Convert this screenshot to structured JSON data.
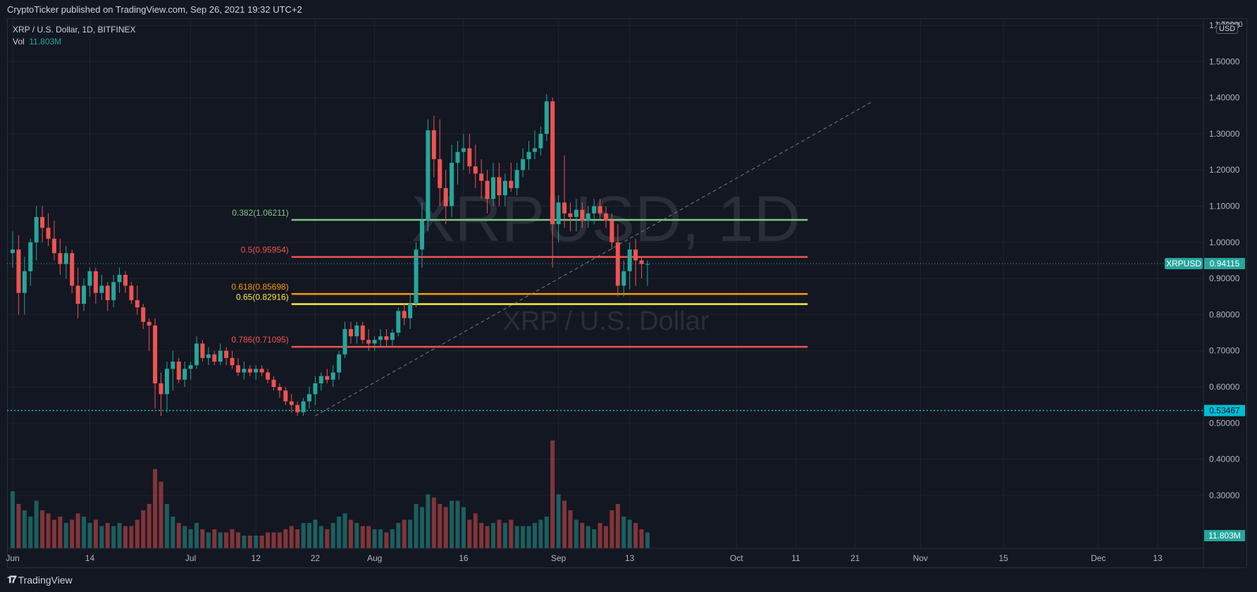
{
  "header": {
    "publish_line": "CryptoTicker published on TradingView.com, Sep 26, 2021 19:32 UTC+2"
  },
  "symbol": {
    "title": "XRP / U.S. Dollar, 1D, BITFINEX",
    "vol_label": "Vol",
    "vol_value": "11.803M",
    "watermark_big": "XRPUSD, 1D",
    "watermark_small": "XRP / U.S. Dollar",
    "currency": "USD"
  },
  "footer": {
    "logo_text": "TradingView"
  },
  "colors": {
    "background": "#131722",
    "grid": "#1f2330",
    "up": "#26a69a",
    "down": "#ef5350",
    "fib_0382": "#81c784",
    "fib_05": "#ef5350",
    "fib_0618": "#ff9800",
    "fib_065": "#ffeb3b",
    "fib_0786": "#ef5350",
    "last_price_badge": "#26a69a",
    "support_line": "#00bcd4"
  },
  "chart_data": {
    "type": "candlestick",
    "title": "XRP / U.S. Dollar, 1D, BITFINEX",
    "y_axis": {
      "ticks": [
        "0.30000",
        "0.40000",
        "0.50000",
        "0.60000",
        "0.70000",
        "0.80000",
        "0.90000",
        "1.00000",
        "1.10000",
        "1.20000",
        "1.30000",
        "1.40000",
        "1.50000",
        "1.60000"
      ],
      "top_partial_label": "1.70000",
      "range": [
        0.27,
        1.74
      ]
    },
    "x_axis": {
      "labels": [
        "Jun",
        "14",
        "Jul",
        "12",
        "22",
        "Aug",
        "16",
        "Sep",
        "13",
        "Oct",
        "11",
        "21",
        "Nov",
        "15",
        "Dec",
        "13"
      ],
      "label_days": [
        0,
        13,
        30,
        41,
        51,
        61,
        76,
        92,
        104,
        122,
        132,
        142,
        153,
        167,
        183,
        193
      ]
    },
    "last_price": {
      "symbol": "XRPUSD",
      "value": "0.94115"
    },
    "support_level": {
      "value": 0.53467,
      "label": "0.53467"
    },
    "volume_badge": "11.803M",
    "fib_levels": [
      {
        "label": "0.382(1.06211)",
        "value": 1.06211,
        "color": "#81c784"
      },
      {
        "label": "0.5(0.95954)",
        "value": 0.95954,
        "color": "#ef5350"
      },
      {
        "label": "0.618(0.85698)",
        "value": 0.85698,
        "color": "#ff9800"
      },
      {
        "label": "0.65(0.82916)",
        "value": 0.82916,
        "color": "#ffeb3b"
      },
      {
        "label": "0.786(0.71095)",
        "value": 0.71095,
        "color": "#ef5350"
      }
    ],
    "trend_line": {
      "from": {
        "day": 51,
        "price": 0.52
      },
      "to": {
        "day": 145,
        "price": 1.39
      }
    },
    "candles": [
      [
        0.97,
        1.03,
        0.93,
        0.98,
        18
      ],
      [
        0.98,
        1.02,
        0.8,
        0.86,
        14
      ],
      [
        0.86,
        0.96,
        0.8,
        0.92,
        12
      ],
      [
        0.92,
        1.01,
        0.88,
        1.0,
        10
      ],
      [
        1.0,
        1.1,
        0.95,
        1.07,
        15
      ],
      [
        1.07,
        1.1,
        1.0,
        1.04,
        12
      ],
      [
        1.04,
        1.08,
        0.99,
        1.01,
        11
      ],
      [
        1.01,
        1.06,
        0.95,
        0.97,
        9
      ],
      [
        0.97,
        1.01,
        0.91,
        0.94,
        10
      ],
      [
        0.94,
        0.99,
        0.9,
        0.97,
        8
      ],
      [
        0.97,
        0.98,
        0.86,
        0.88,
        9
      ],
      [
        0.88,
        0.93,
        0.79,
        0.83,
        11
      ],
      [
        0.83,
        0.9,
        0.81,
        0.88,
        10
      ],
      [
        0.88,
        0.93,
        0.85,
        0.92,
        8
      ],
      [
        0.92,
        0.93,
        0.83,
        0.86,
        9
      ],
      [
        0.86,
        0.91,
        0.84,
        0.88,
        7
      ],
      [
        0.88,
        0.89,
        0.81,
        0.84,
        8
      ],
      [
        0.84,
        0.91,
        0.82,
        0.89,
        7
      ],
      [
        0.89,
        0.93,
        0.86,
        0.91,
        8
      ],
      [
        0.91,
        0.92,
        0.86,
        0.88,
        7
      ],
      [
        0.88,
        0.89,
        0.83,
        0.84,
        7
      ],
      [
        0.84,
        0.88,
        0.8,
        0.82,
        9
      ],
      [
        0.82,
        0.83,
        0.76,
        0.78,
        12
      ],
      [
        0.78,
        0.79,
        0.7,
        0.77,
        14
      ],
      [
        0.77,
        0.79,
        0.54,
        0.61,
        25
      ],
      [
        0.61,
        0.64,
        0.52,
        0.58,
        21
      ],
      [
        0.58,
        0.67,
        0.53,
        0.65,
        14
      ],
      [
        0.65,
        0.7,
        0.59,
        0.67,
        10
      ],
      [
        0.67,
        0.68,
        0.61,
        0.62,
        8
      ],
      [
        0.62,
        0.67,
        0.6,
        0.65,
        7
      ],
      [
        0.65,
        0.67,
        0.62,
        0.66,
        6
      ],
      [
        0.66,
        0.74,
        0.65,
        0.72,
        8
      ],
      [
        0.72,
        0.73,
        0.67,
        0.68,
        6
      ],
      [
        0.68,
        0.71,
        0.66,
        0.69,
        5
      ],
      [
        0.69,
        0.7,
        0.66,
        0.67,
        6
      ],
      [
        0.67,
        0.72,
        0.66,
        0.7,
        5
      ],
      [
        0.7,
        0.71,
        0.66,
        0.68,
        5
      ],
      [
        0.68,
        0.7,
        0.65,
        0.66,
        6
      ],
      [
        0.66,
        0.68,
        0.63,
        0.64,
        5
      ],
      [
        0.64,
        0.67,
        0.62,
        0.65,
        4
      ],
      [
        0.65,
        0.66,
        0.63,
        0.64,
        4
      ],
      [
        0.64,
        0.66,
        0.62,
        0.65,
        4
      ],
      [
        0.65,
        0.66,
        0.63,
        0.64,
        4
      ],
      [
        0.64,
        0.65,
        0.61,
        0.62,
        5
      ],
      [
        0.62,
        0.63,
        0.59,
        0.6,
        5
      ],
      [
        0.6,
        0.61,
        0.57,
        0.59,
        5
      ],
      [
        0.59,
        0.6,
        0.55,
        0.56,
        6
      ],
      [
        0.56,
        0.58,
        0.53,
        0.55,
        7
      ],
      [
        0.55,
        0.56,
        0.52,
        0.53,
        6
      ],
      [
        0.53,
        0.57,
        0.52,
        0.56,
        8
      ],
      [
        0.56,
        0.6,
        0.54,
        0.58,
        8
      ],
      [
        0.58,
        0.63,
        0.55,
        0.61,
        9
      ],
      [
        0.61,
        0.64,
        0.59,
        0.63,
        7
      ],
      [
        0.63,
        0.65,
        0.61,
        0.62,
        6
      ],
      [
        0.62,
        0.66,
        0.6,
        0.64,
        8
      ],
      [
        0.64,
        0.7,
        0.62,
        0.69,
        10
      ],
      [
        0.69,
        0.78,
        0.68,
        0.76,
        11
      ],
      [
        0.76,
        0.78,
        0.72,
        0.74,
        9
      ],
      [
        0.74,
        0.78,
        0.72,
        0.77,
        8
      ],
      [
        0.77,
        0.78,
        0.72,
        0.73,
        7
      ],
      [
        0.73,
        0.76,
        0.7,
        0.72,
        7
      ],
      [
        0.72,
        0.74,
        0.7,
        0.73,
        6
      ],
      [
        0.73,
        0.76,
        0.71,
        0.74,
        6
      ],
      [
        0.74,
        0.76,
        0.71,
        0.73,
        5
      ],
      [
        0.73,
        0.76,
        0.71,
        0.75,
        6
      ],
      [
        0.75,
        0.82,
        0.74,
        0.81,
        8
      ],
      [
        0.81,
        0.83,
        0.77,
        0.79,
        9
      ],
      [
        0.79,
        0.86,
        0.76,
        0.83,
        9
      ],
      [
        0.83,
        1.0,
        0.82,
        0.98,
        14
      ],
      [
        0.98,
        1.11,
        0.93,
        1.06,
        13
      ],
      [
        1.06,
        1.34,
        1.03,
        1.31,
        17
      ],
      [
        1.31,
        1.35,
        1.18,
        1.23,
        16
      ],
      [
        1.23,
        1.34,
        1.1,
        1.15,
        14
      ],
      [
        1.15,
        1.2,
        1.05,
        1.1,
        13
      ],
      [
        1.1,
        1.27,
        1.07,
        1.22,
        15
      ],
      [
        1.22,
        1.28,
        1.16,
        1.25,
        15
      ],
      [
        1.25,
        1.3,
        1.2,
        1.26,
        13
      ],
      [
        1.26,
        1.3,
        1.19,
        1.21,
        9
      ],
      [
        1.21,
        1.27,
        1.15,
        1.19,
        11
      ],
      [
        1.19,
        1.23,
        1.12,
        1.17,
        8
      ],
      [
        1.17,
        1.2,
        1.08,
        1.12,
        7
      ],
      [
        1.12,
        1.22,
        1.1,
        1.18,
        8
      ],
      [
        1.18,
        1.22,
        1.1,
        1.13,
        9
      ],
      [
        1.13,
        1.19,
        1.1,
        1.17,
        8
      ],
      [
        1.17,
        1.22,
        1.14,
        1.15,
        9
      ],
      [
        1.15,
        1.22,
        1.13,
        1.2,
        7
      ],
      [
        1.2,
        1.26,
        1.18,
        1.23,
        7
      ],
      [
        1.23,
        1.28,
        1.2,
        1.25,
        7
      ],
      [
        1.25,
        1.31,
        1.23,
        1.26,
        8
      ],
      [
        1.26,
        1.32,
        1.24,
        1.3,
        9
      ],
      [
        1.3,
        1.41,
        1.28,
        1.39,
        10
      ],
      [
        1.39,
        1.4,
        0.93,
        1.05,
        34
      ],
      [
        1.05,
        1.13,
        1.0,
        1.11,
        17
      ],
      [
        1.11,
        1.24,
        1.04,
        1.08,
        15
      ],
      [
        1.08,
        1.11,
        1.03,
        1.07,
        12
      ],
      [
        1.07,
        1.12,
        1.03,
        1.09,
        9
      ],
      [
        1.09,
        1.11,
        1.04,
        1.06,
        8
      ],
      [
        1.06,
        1.1,
        1.04,
        1.08,
        7
      ],
      [
        1.08,
        1.12,
        1.05,
        1.1,
        6
      ],
      [
        1.1,
        1.12,
        1.06,
        1.08,
        8
      ],
      [
        1.08,
        1.1,
        1.04,
        1.06,
        7
      ],
      [
        1.06,
        1.08,
        0.98,
        1.0,
        12
      ],
      [
        1.0,
        1.05,
        0.85,
        0.88,
        14
      ],
      [
        0.88,
        0.95,
        0.85,
        0.92,
        10
      ],
      [
        0.92,
        1.0,
        0.87,
        0.98,
        9
      ],
      [
        0.98,
        1.01,
        0.88,
        0.95,
        8
      ],
      [
        0.95,
        0.96,
        0.9,
        0.94,
        6
      ],
      [
        0.94,
        0.95,
        0.88,
        0.94,
        5
      ]
    ]
  }
}
